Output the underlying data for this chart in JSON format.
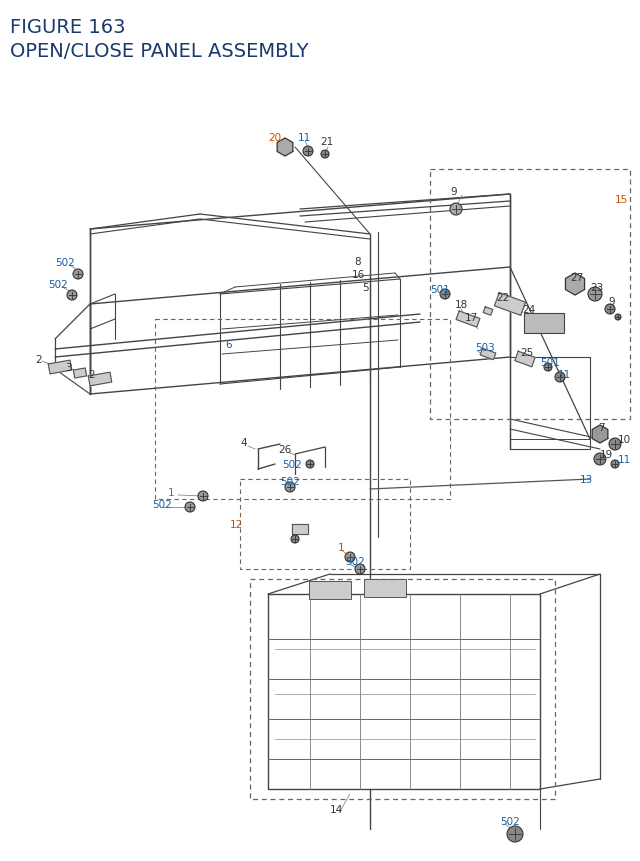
{
  "title_line1": "FIGURE 163",
  "title_line2": "OPEN/CLOSE PANEL ASSEMBLY",
  "title_color": "#1a3a6e",
  "title_fontsize": 14,
  "bg_color": "#ffffff",
  "label_color_orange": "#c85000",
  "label_color_blue": "#1a5fa0",
  "label_color_dark": "#333333",
  "line_color": "#444444",
  "dash_box_color": "#666666"
}
